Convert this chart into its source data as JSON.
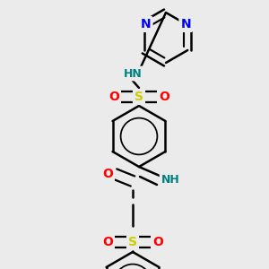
{
  "background_color": "#ebebeb",
  "bond_color": "#000000",
  "bond_width": 1.8,
  "atom_colors": {
    "N": "#0000ff",
    "O": "#ff0000",
    "S": "#cccc00",
    "H_label": "#008080"
  },
  "font_size_atom": 10,
  "figsize": [
    3.0,
    3.0
  ],
  "dpi": 100
}
